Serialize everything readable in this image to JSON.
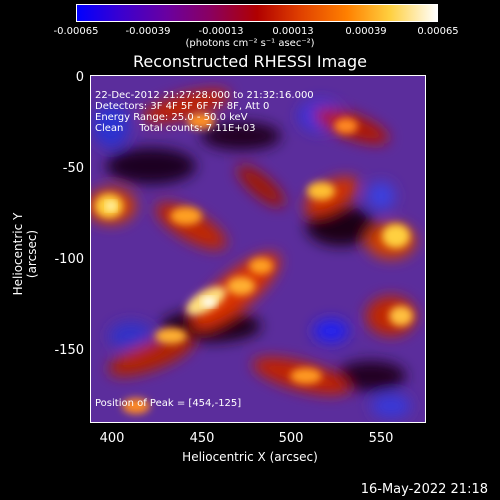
{
  "colorbar": {
    "ticks": [
      "-0.00065",
      "-0.00039",
      "-0.00013",
      "0.00013",
      "0.00039",
      "0.00065"
    ],
    "units": "(photons cm⁻² s⁻¹ asec⁻²)"
  },
  "title": "Reconstructed RHESSI Image",
  "info": {
    "line1": "22-Dec-2012 21:27:28.000 to 21:32:16.000",
    "line2": "Detectors: 3F 4F 5F 6F 7F 8F, Att 0",
    "line3": "Energy Range: 25.0 - 50.0 keV",
    "line4": "Clean     Total counts: 7.11E+03",
    "peak": "Position of Peak = [454,-125]"
  },
  "axes": {
    "xlabel": "Heliocentric X (arcsec)",
    "ylabel": "Heliocentric Y (arcsec)",
    "xticks": [
      "400",
      "450",
      "500",
      "550"
    ],
    "yticks": [
      "0",
      "-50",
      "-100",
      "-150"
    ]
  },
  "timestamp": "16-May-2022 21:18"
}
